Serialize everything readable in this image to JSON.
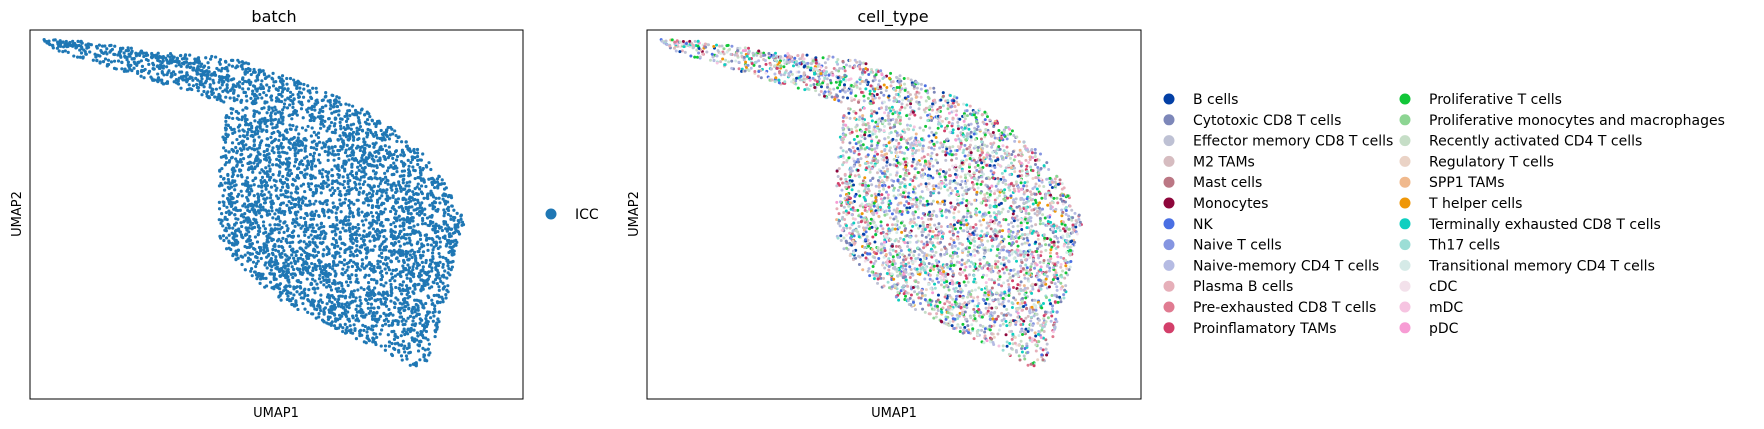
{
  "chart_data": [
    {
      "type": "scatter",
      "title": "batch",
      "xlabel": "UMAP1",
      "ylabel": "UMAP2",
      "grid": false,
      "ticks": "none",
      "legend_placement": "right",
      "series": [
        {
          "name": "ICC",
          "color": "#1f77b4"
        }
      ]
    },
    {
      "type": "scatter",
      "title": "cell_type",
      "xlabel": "UMAP1",
      "ylabel": "UMAP2",
      "grid": false,
      "ticks": "none",
      "legend_placement": "right",
      "legend_columns": 2,
      "series": [
        {
          "name": "B cells",
          "color": "#023fa5"
        },
        {
          "name": "Cytotoxic CD8 T cells",
          "color": "#7d87b9"
        },
        {
          "name": "Effector memory CD8 T cells",
          "color": "#bec1d4"
        },
        {
          "name": "M2 TAMs",
          "color": "#d6bcc0"
        },
        {
          "name": "Mast cells",
          "color": "#bb7784"
        },
        {
          "name": "Monocytes",
          "color": "#8e063b"
        },
        {
          "name": "NK",
          "color": "#4a6fe3"
        },
        {
          "name": "Naive T cells",
          "color": "#8595e1"
        },
        {
          "name": "Naive-memory CD4 T cells",
          "color": "#b5bbe3"
        },
        {
          "name": "Plasma B cells",
          "color": "#e6afb9"
        },
        {
          "name": "Pre-exhausted CD8 T cells",
          "color": "#e07b91"
        },
        {
          "name": "Proinflamatory TAMs",
          "color": "#d33f6a"
        },
        {
          "name": "Proliferative T cells",
          "color": "#11c638"
        },
        {
          "name": "Proliferative monocytes and macrophages",
          "color": "#8dd593"
        },
        {
          "name": "Recently activated CD4 T cells",
          "color": "#c6dec7"
        },
        {
          "name": "Regulatory T cells",
          "color": "#ead3c6"
        },
        {
          "name": "SPP1 TAMs",
          "color": "#f0b98d"
        },
        {
          "name": "T helper cells",
          "color": "#ef9708"
        },
        {
          "name": "Terminally exhausted CD8 T cells",
          "color": "#0fcfc0"
        },
        {
          "name": "Th17 cells",
          "color": "#9cded6"
        },
        {
          "name": "Transitional memory CD4 T cells",
          "color": "#d5eae7"
        },
        {
          "name": "cDC",
          "color": "#f3e1eb"
        },
        {
          "name": "mDC",
          "color": "#f6c4e1"
        },
        {
          "name": "pDC",
          "color": "#f79cd4"
        }
      ]
    }
  ]
}
